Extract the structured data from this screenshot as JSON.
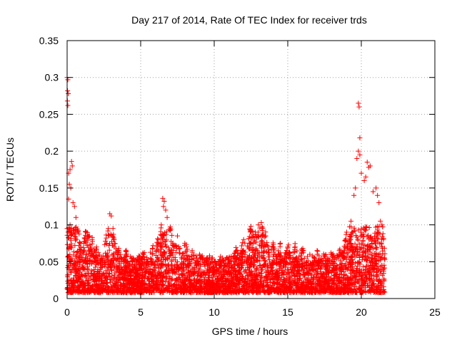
{
  "chart_data": {
    "type": "scatter",
    "title": "Day 217 of 2014, Rate Of TEC Index for receiver trds",
    "xlabel": "GPS time / hours",
    "ylabel": "ROTI / TECUs",
    "xlim": [
      0,
      25
    ],
    "ylim": [
      0,
      0.35
    ],
    "xticks": [
      0,
      5,
      10,
      15,
      20,
      25
    ],
    "yticks": [
      0,
      0.05,
      0.1,
      0.15,
      0.2,
      0.25,
      0.3,
      0.35
    ],
    "xtick_labels": [
      "0",
      "5",
      "10",
      "15",
      "20",
      "25"
    ],
    "ytick_labels": [
      "0",
      "0.05",
      "0.1",
      "0.15",
      "0.2",
      "0.25",
      "0.3",
      "0.35"
    ],
    "grid": true,
    "marker": "+",
    "color": "#ff0000",
    "series": [
      {
        "name": "ROTI",
        "points": [
          [
            0.0,
            0.3
          ],
          [
            0.05,
            0.297
          ],
          [
            0.03,
            0.282
          ],
          [
            0.08,
            0.278
          ],
          [
            0.02,
            0.268
          ],
          [
            0.05,
            0.262
          ],
          [
            0.1,
            0.17
          ],
          [
            0.2,
            0.175
          ],
          [
            0.15,
            0.155
          ],
          [
            0.3,
            0.186
          ],
          [
            0.35,
            0.18
          ],
          [
            0.25,
            0.15
          ],
          [
            0.4,
            0.13
          ],
          [
            0.5,
            0.125
          ],
          [
            0.1,
            0.135
          ],
          [
            0.6,
            0.11
          ],
          [
            0.2,
            0.1
          ],
          [
            0.0,
            0.095
          ],
          [
            1.3,
            0.09
          ],
          [
            1.5,
            0.085
          ],
          [
            1.7,
            0.08
          ],
          [
            2.0,
            0.07
          ],
          [
            2.9,
            0.115
          ],
          [
            3.0,
            0.112
          ],
          [
            2.8,
            0.095
          ],
          [
            3.2,
            0.08
          ],
          [
            3.5,
            0.065
          ],
          [
            4.0,
            0.06
          ],
          [
            4.5,
            0.055
          ],
          [
            5.2,
            0.06
          ],
          [
            5.8,
            0.068
          ],
          [
            6.2,
            0.08
          ],
          [
            6.5,
            0.136
          ],
          [
            6.6,
            0.132
          ],
          [
            6.55,
            0.125
          ],
          [
            6.7,
            0.12
          ],
          [
            6.8,
            0.11
          ],
          [
            6.4,
            0.1
          ],
          [
            7.0,
            0.095
          ],
          [
            7.5,
            0.085
          ],
          [
            8.0,
            0.075
          ],
          [
            8.5,
            0.065
          ],
          [
            9.0,
            0.06
          ],
          [
            9.5,
            0.055
          ],
          [
            10.0,
            0.05
          ],
          [
            10.5,
            0.045
          ],
          [
            11.0,
            0.055
          ],
          [
            11.5,
            0.065
          ],
          [
            12.0,
            0.08
          ],
          [
            12.5,
            0.098
          ],
          [
            12.8,
            0.09
          ],
          [
            13.0,
            0.1
          ],
          [
            13.2,
            0.103
          ],
          [
            13.5,
            0.085
          ],
          [
            14.0,
            0.07
          ],
          [
            14.5,
            0.075
          ],
          [
            15.0,
            0.07
          ],
          [
            15.5,
            0.07
          ],
          [
            16.0,
            0.065
          ],
          [
            16.5,
            0.06
          ],
          [
            17.0,
            0.06
          ],
          [
            17.5,
            0.058
          ],
          [
            18.0,
            0.06
          ],
          [
            18.5,
            0.065
          ],
          [
            19.0,
            0.09
          ],
          [
            19.3,
            0.105
          ],
          [
            19.5,
            0.14
          ],
          [
            19.6,
            0.15
          ],
          [
            19.7,
            0.19
          ],
          [
            19.8,
            0.2
          ],
          [
            19.8,
            0.265
          ],
          [
            19.85,
            0.26
          ],
          [
            19.9,
            0.218
          ],
          [
            19.9,
            0.195
          ],
          [
            20.0,
            0.17
          ],
          [
            20.2,
            0.16
          ],
          [
            20.3,
            0.165
          ],
          [
            20.4,
            0.185
          ],
          [
            20.5,
            0.178
          ],
          [
            20.6,
            0.18
          ],
          [
            20.8,
            0.145
          ],
          [
            21.0,
            0.15
          ],
          [
            21.1,
            0.14
          ],
          [
            21.2,
            0.13
          ],
          [
            21.3,
            0.105
          ],
          [
            21.4,
            0.1
          ],
          [
            21.5,
            0.08
          ]
        ]
      }
    ]
  }
}
